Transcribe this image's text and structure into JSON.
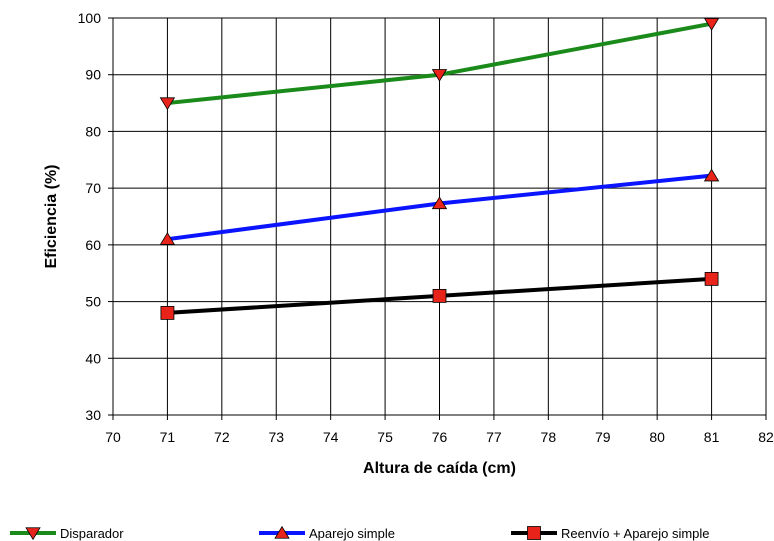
{
  "chart_data": {
    "type": "line",
    "xlabel": "Altura de caída (cm)",
    "ylabel": "Eficiencia (%)",
    "xlim": [
      70,
      82
    ],
    "ylim": [
      30,
      100
    ],
    "xticks": [
      70,
      71,
      72,
      73,
      74,
      75,
      76,
      77,
      78,
      79,
      80,
      81,
      82
    ],
    "yticks": [
      30,
      40,
      50,
      60,
      70,
      80,
      90,
      100
    ],
    "grid": true,
    "legend_position": "bottom",
    "series": [
      {
        "name": "Disparador",
        "color": "#1a8a1a",
        "marker": "triangle-down",
        "marker_color": "#e8231a",
        "x": [
          71,
          76,
          81
        ],
        "y": [
          85,
          90,
          99
        ]
      },
      {
        "name": "Aparejo simple",
        "color": "#0a14ff",
        "marker": "triangle-up",
        "marker_color": "#e8231a",
        "x": [
          71,
          76,
          81
        ],
        "y": [
          61,
          67.3,
          72.2
        ]
      },
      {
        "name": "Reenvío + Aparejo simple",
        "color": "#000000",
        "marker": "square",
        "marker_color": "#e8231a",
        "x": [
          71,
          76,
          81
        ],
        "y": [
          48,
          51,
          54
        ]
      }
    ]
  }
}
